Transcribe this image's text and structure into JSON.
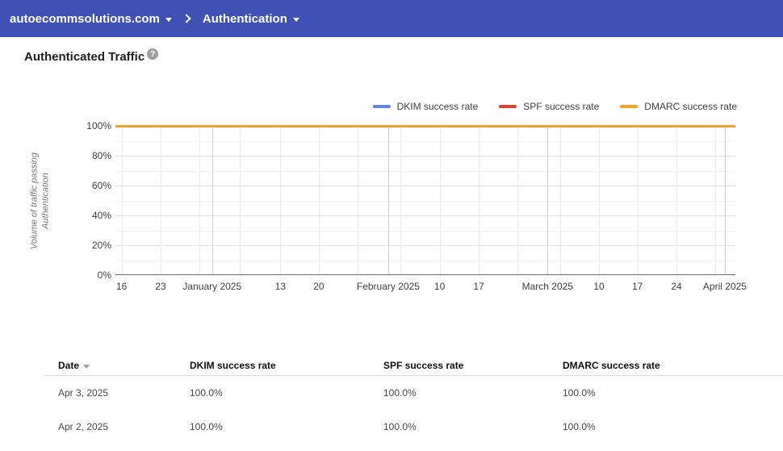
{
  "header": {
    "domain_selector": "autoecommsolutions.com",
    "page_selector": "Authentication"
  },
  "page": {
    "title": "Authenticated Traffic",
    "help_icon": "?"
  },
  "chart_data": {
    "type": "line",
    "title": "Authenticated Traffic",
    "ylabel": "Volume of traffic passing Authentication",
    "ylabel_lines": "Volume of traffic passing Authentication",
    "unit": "%",
    "ylim": [
      0,
      100
    ],
    "grid": true,
    "legend_position": "top-right",
    "y_ticks": [
      {
        "label": "100%",
        "value": 100
      },
      {
        "label": "80%",
        "value": 80
      },
      {
        "label": "60%",
        "value": 60
      },
      {
        "label": "40%",
        "value": 40
      },
      {
        "label": "20%",
        "value": 20
      },
      {
        "label": "0%",
        "value": 0
      }
    ],
    "y_gridlines": {
      "major": [
        100,
        80,
        60,
        40,
        20
      ],
      "minor": [
        90,
        70,
        50,
        30,
        10
      ]
    },
    "x_ticks": [
      {
        "label": "16",
        "pos": 1.0
      },
      {
        "label": "23",
        "pos": 7.3
      },
      {
        "label": "January 2025",
        "pos": 15.6
      },
      {
        "label": "13",
        "pos": 26.6
      },
      {
        "label": "20",
        "pos": 32.8
      },
      {
        "label": "February 2025",
        "pos": 44.0
      },
      {
        "label": "10",
        "pos": 52.3
      },
      {
        "label": "17",
        "pos": 58.6
      },
      {
        "label": "March 2025",
        "pos": 69.7
      },
      {
        "label": "10",
        "pos": 78.0
      },
      {
        "label": "17",
        "pos": 84.2
      },
      {
        "label": "24",
        "pos": 90.5
      },
      {
        "label": "April 2025",
        "pos": 98.3
      }
    ],
    "x_gridlines": {
      "weeks": [
        1.0,
        7.3,
        13.6,
        20.1,
        26.6,
        32.8,
        39.1,
        46.0,
        52.3,
        58.6,
        64.9,
        71.7,
        78.0,
        84.2,
        90.5,
        96.8
      ],
      "months": [
        15.6,
        44.0,
        69.7,
        98.3
      ]
    },
    "series": [
      {
        "name": "DKIM success rate",
        "color": "#5E86EC",
        "x_percent": [
          0,
          100
        ],
        "values": [
          100,
          100
        ]
      },
      {
        "name": "SPF success rate",
        "color": "#DB4437",
        "x_percent": [
          0,
          100
        ],
        "values": [
          100,
          100
        ]
      },
      {
        "name": "DMARC success rate",
        "color": "#F0A330",
        "x_percent": [
          0,
          100
        ],
        "values": [
          100,
          100
        ]
      }
    ]
  },
  "table": {
    "columns": [
      "Date",
      "DKIM success rate",
      "SPF success rate",
      "DMARC success rate"
    ],
    "sort": {
      "column": "Date",
      "direction": "desc"
    },
    "rows": [
      [
        "Apr 3, 2025",
        "100.0%",
        "100.0%",
        "100.0%"
      ],
      [
        "Apr 2, 2025",
        "100.0%",
        "100.0%",
        "100.0%"
      ]
    ]
  },
  "colors": {
    "topbar": "#4051B5",
    "dkim": "#5E86EC",
    "spf": "#DB4437",
    "dmarc": "#F0A330"
  }
}
